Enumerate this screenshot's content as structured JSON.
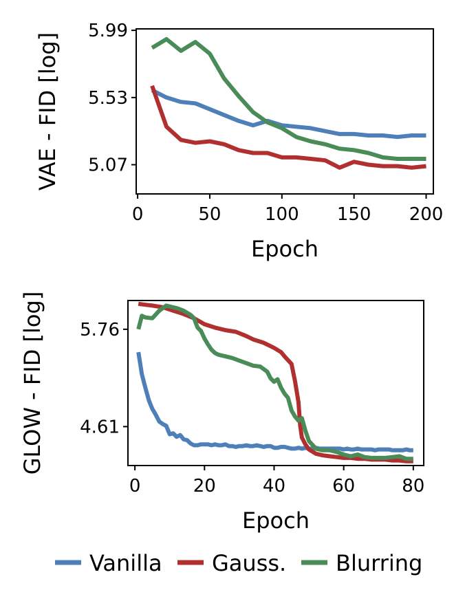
{
  "colors": {
    "vanilla": "#4f7fb8",
    "gauss": "#b03030",
    "blurring": "#4a8c58"
  },
  "chart_data": [
    {
      "type": "line",
      "xlabel": "Epoch",
      "ylabel": "VAE - FID [log]",
      "xlim": [
        -1,
        205
      ],
      "ylim": [
        4.87,
        6.0
      ],
      "xticks": [
        0,
        50,
        100,
        150,
        200
      ],
      "yticks": [
        5.07,
        5.53,
        5.99
      ],
      "grid": false,
      "series": [
        {
          "name": "Vanilla",
          "x": [
            10,
            20,
            30,
            40,
            50,
            60,
            70,
            80,
            90,
            100,
            110,
            120,
            130,
            140,
            150,
            160,
            170,
            180,
            190,
            200
          ],
          "values": [
            5.58,
            5.53,
            5.5,
            5.49,
            5.45,
            5.41,
            5.37,
            5.34,
            5.37,
            5.34,
            5.33,
            5.32,
            5.3,
            5.28,
            5.28,
            5.27,
            5.27,
            5.26,
            5.27,
            5.27
          ]
        },
        {
          "name": "Gauss.",
          "x": [
            10,
            20,
            30,
            40,
            50,
            60,
            70,
            80,
            90,
            100,
            110,
            120,
            130,
            140,
            150,
            160,
            170,
            180,
            190,
            200
          ],
          "values": [
            5.61,
            5.33,
            5.24,
            5.22,
            5.23,
            5.21,
            5.17,
            5.15,
            5.15,
            5.12,
            5.12,
            5.11,
            5.1,
            5.05,
            5.09,
            5.07,
            5.06,
            5.06,
            5.05,
            5.06
          ]
        },
        {
          "name": "Blurring",
          "x": [
            10,
            20,
            30,
            40,
            50,
            60,
            70,
            80,
            90,
            100,
            110,
            120,
            130,
            140,
            150,
            160,
            170,
            180,
            190,
            200
          ],
          "values": [
            5.87,
            5.93,
            5.85,
            5.91,
            5.83,
            5.66,
            5.54,
            5.43,
            5.36,
            5.32,
            5.26,
            5.23,
            5.21,
            5.18,
            5.17,
            5.15,
            5.12,
            5.11,
            5.11,
            5.11
          ]
        }
      ]
    },
    {
      "type": "line",
      "xlabel": "Epoch",
      "ylabel": "GLOW - FID [log]",
      "xlim": [
        -2,
        83
      ],
      "ylim": [
        4.15,
        6.1
      ],
      "xticks": [
        0,
        20,
        40,
        60,
        80
      ],
      "yticks": [
        4.61,
        5.76
      ],
      "grid": false,
      "series": [
        {
          "name": "Vanilla",
          "x": [
            1,
            2,
            3,
            4,
            5,
            6,
            7,
            8,
            9,
            10,
            11,
            12,
            13,
            14,
            15,
            16,
            17,
            18,
            19,
            20,
            21,
            22,
            23,
            24,
            25,
            26,
            27,
            28,
            29,
            30,
            31,
            32,
            33,
            34,
            35,
            36,
            37,
            38,
            39,
            40,
            41,
            42,
            43,
            44,
            45,
            46,
            47,
            48,
            49,
            50,
            51,
            52,
            53,
            54,
            55,
            56,
            57,
            58,
            59,
            60,
            61,
            62,
            63,
            64,
            65,
            66,
            67,
            68,
            69,
            70,
            71,
            72,
            73,
            74,
            75,
            76,
            77,
            78,
            79,
            80
          ],
          "values": [
            5.49,
            5.23,
            5.07,
            4.92,
            4.82,
            4.75,
            4.67,
            4.64,
            4.62,
            4.52,
            4.53,
            4.49,
            4.51,
            4.46,
            4.45,
            4.41,
            4.39,
            4.39,
            4.4,
            4.4,
            4.4,
            4.39,
            4.4,
            4.39,
            4.39,
            4.4,
            4.38,
            4.38,
            4.37,
            4.38,
            4.38,
            4.39,
            4.38,
            4.38,
            4.39,
            4.38,
            4.37,
            4.38,
            4.38,
            4.36,
            4.36,
            4.37,
            4.37,
            4.36,
            4.35,
            4.35,
            4.36,
            4.35,
            4.36,
            4.35,
            4.35,
            4.36,
            4.35,
            4.35,
            4.35,
            4.35,
            4.35,
            4.35,
            4.35,
            4.34,
            4.35,
            4.34,
            4.34,
            4.35,
            4.34,
            4.34,
            4.34,
            4.34,
            4.33,
            4.34,
            4.34,
            4.34,
            4.34,
            4.33,
            4.33,
            4.33,
            4.33,
            4.34,
            4.33,
            4.33
          ]
        },
        {
          "name": "Gauss.",
          "x": [
            1,
            3,
            5,
            8,
            11,
            14,
            17,
            20,
            23,
            26,
            29,
            32,
            34,
            37,
            40,
            42,
            43,
            45,
            46,
            47,
            47.5,
            48,
            49,
            50,
            52,
            54,
            56,
            58,
            60,
            62,
            64,
            66,
            68,
            70,
            72,
            74,
            76,
            78,
            80
          ],
          "values": [
            6.06,
            6.05,
            6.04,
            6.02,
            5.98,
            5.94,
            5.89,
            5.82,
            5.78,
            5.75,
            5.73,
            5.68,
            5.64,
            5.6,
            5.54,
            5.49,
            5.44,
            5.35,
            5.15,
            4.9,
            4.62,
            4.48,
            4.4,
            4.34,
            4.29,
            4.27,
            4.26,
            4.25,
            4.24,
            4.24,
            4.23,
            4.23,
            4.22,
            4.22,
            4.22,
            4.21,
            4.21,
            4.2,
            4.2
          ]
        },
        {
          "name": "Blurring",
          "x": [
            1,
            2,
            3,
            5,
            7,
            9,
            12,
            14,
            16,
            17,
            18,
            19,
            20,
            21,
            22,
            23,
            24,
            26,
            28,
            30,
            32,
            34,
            36,
            38,
            39,
            40,
            41,
            42,
            43,
            44,
            45,
            46,
            47,
            48,
            49,
            50,
            52,
            54,
            56,
            58,
            60,
            62,
            64,
            66,
            68,
            70,
            72,
            74,
            76,
            78,
            80
          ],
          "values": [
            5.76,
            5.92,
            5.9,
            5.89,
            5.98,
            6.04,
            6.01,
            5.98,
            5.93,
            5.89,
            5.78,
            5.74,
            5.65,
            5.58,
            5.52,
            5.48,
            5.46,
            5.44,
            5.42,
            5.39,
            5.36,
            5.33,
            5.32,
            5.26,
            5.18,
            5.14,
            5.17,
            5.07,
            5.0,
            4.95,
            4.8,
            4.73,
            4.68,
            4.71,
            4.56,
            4.44,
            4.35,
            4.33,
            4.33,
            4.31,
            4.28,
            4.26,
            4.28,
            4.25,
            4.24,
            4.24,
            4.24,
            4.25,
            4.26,
            4.23,
            4.23
          ]
        }
      ]
    }
  ]
}
